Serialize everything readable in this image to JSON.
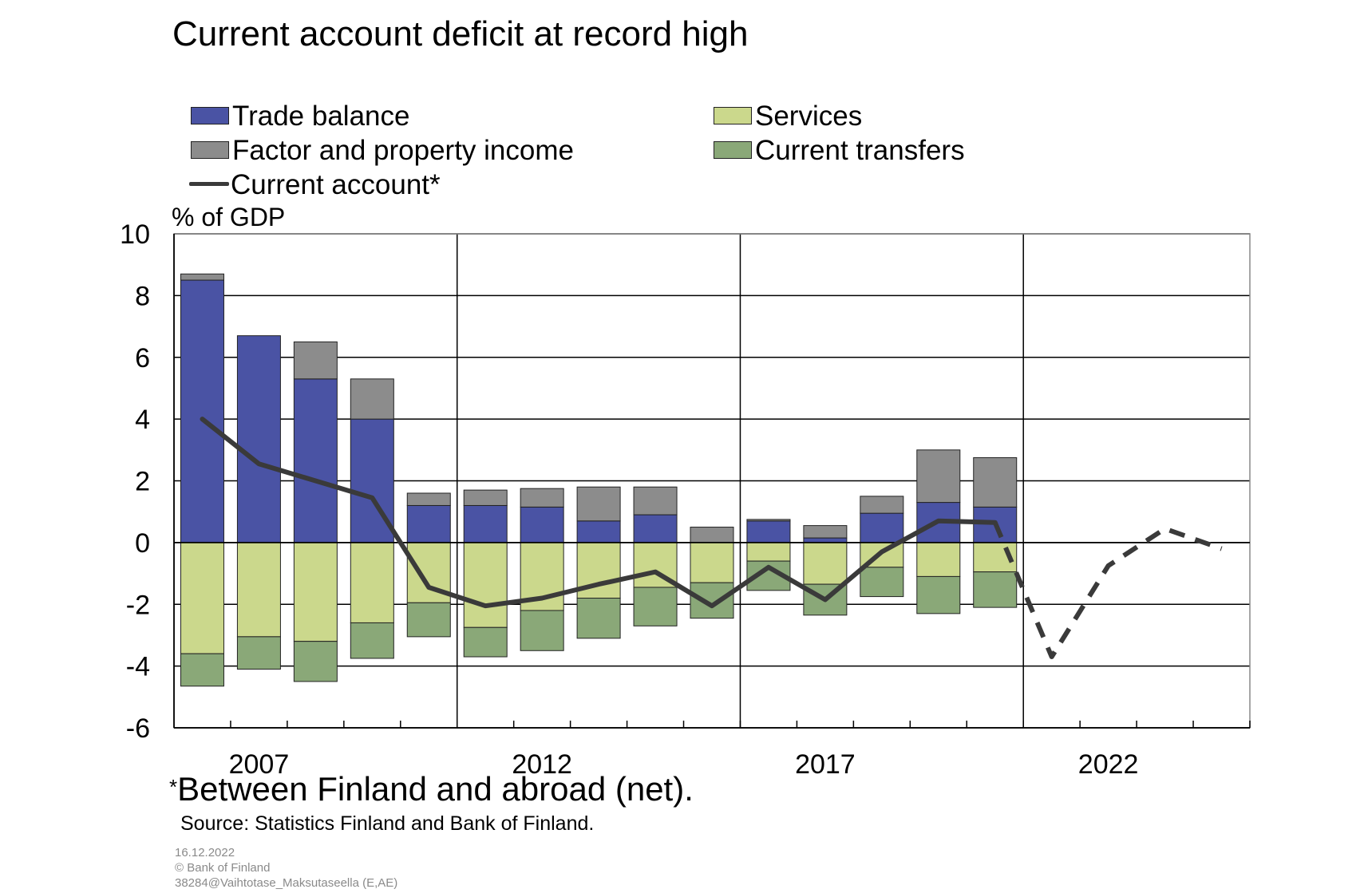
{
  "title": "Current account deficit at record high",
  "footnote": "Between Finland and abroad (net).",
  "footnote_marker": "*",
  "source": "Source: Statistics Finland and Bank of Finland.",
  "meta": {
    "date": "16.12.2022",
    "copyright": "© Bank of Finland",
    "id": "38284@Vaihtotase_Maksutaseella  (E,AE)"
  },
  "colors": {
    "trade_balance": "#4a53a4",
    "services": "#cbd88c",
    "factor_income": "#8c8c8c",
    "current_transfers": "#8aa878",
    "current_account": "#3a3a3a"
  },
  "legend": {
    "trade_balance": "Trade balance",
    "services": "Services",
    "factor_income": "Factor and property income",
    "current_transfers": "Current transfers",
    "current_account": "Current account*"
  },
  "chart_data": {
    "type": "bar",
    "stacked": true,
    "title": "Current account deficit at record high",
    "ylabel": "% of GDP",
    "xlabel": "",
    "ylim": [
      -6,
      10
    ],
    "yticks": [
      -6,
      -4,
      -2,
      0,
      2,
      4,
      6,
      8,
      10
    ],
    "xlim": [
      2006,
      2025
    ],
    "xtick_labels": [
      2007,
      2012,
      2017,
      2022
    ],
    "major_gridlines_x": [
      2011,
      2016,
      2021
    ],
    "grid": true,
    "legend_position": "top",
    "categories": [
      2006,
      2007,
      2008,
      2009,
      2010,
      2011,
      2012,
      2013,
      2014,
      2015,
      2016,
      2017,
      2018,
      2019,
      2020
    ],
    "series": [
      {
        "name": "Trade balance",
        "values": [
          8.5,
          6.7,
          5.3,
          4.0,
          1.2,
          1.2,
          1.15,
          0.7,
          0.9,
          0.0,
          0.7,
          0.15,
          0.95,
          1.3,
          1.15
        ]
      },
      {
        "name": "Factor and property income",
        "values": [
          0.2,
          0.0,
          1.2,
          1.3,
          0.4,
          0.5,
          0.6,
          1.1,
          0.9,
          0.5,
          0.05,
          0.4,
          0.55,
          1.7,
          1.6
        ]
      },
      {
        "name": "Services",
        "values": [
          -3.6,
          -3.05,
          -3.2,
          -2.6,
          -1.95,
          -2.75,
          -2.2,
          -1.8,
          -1.45,
          -1.3,
          -0.6,
          -1.35,
          -0.8,
          -1.1,
          -0.95
        ]
      },
      {
        "name": "Current transfers",
        "values": [
          -1.05,
          -1.05,
          -1.3,
          -1.15,
          -1.1,
          -0.95,
          -1.3,
          -1.3,
          -1.25,
          -1.15,
          -0.95,
          -1.0,
          -0.95,
          -1.2,
          -1.15
        ]
      }
    ],
    "line": {
      "name": "Current account*",
      "x": [
        2006,
        2007,
        2008,
        2009,
        2010,
        2011,
        2012,
        2013,
        2014,
        2015,
        2016,
        2017,
        2018,
        2019,
        2020
      ],
      "values": [
        4.0,
        2.55,
        2.0,
        1.45,
        -1.45,
        -2.05,
        -1.8,
        -1.35,
        -0.95,
        -2.05,
        -0.8,
        -1.85,
        -0.3,
        0.7,
        0.65
      ]
    },
    "forecast_line": {
      "x": [
        2020,
        2021,
        2022,
        2023,
        2024
      ],
      "values": [
        0.65,
        -3.7,
        -0.75,
        0.45,
        -0.2
      ]
    }
  }
}
